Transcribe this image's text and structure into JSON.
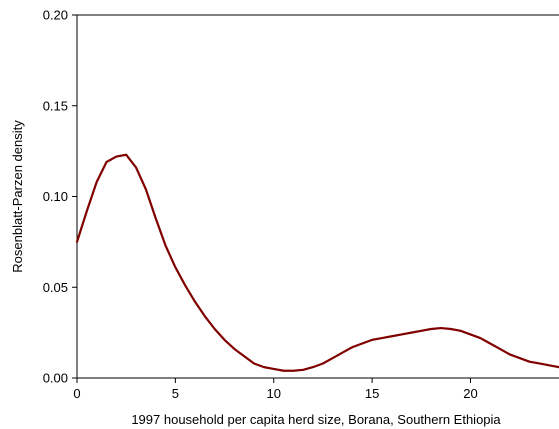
{
  "chart_data": {
    "type": "line",
    "title": "",
    "xlabel": "1997 household per capita herd size, Borana, Southern Ethiopia",
    "ylabel": "Rosenblatt-Parzen density",
    "xlim": [
      0,
      24.5
    ],
    "ylim": [
      0,
      0.2
    ],
    "x_ticks": [
      0,
      5,
      10,
      15,
      20
    ],
    "y_ticks": [
      0.0,
      0.05,
      0.1,
      0.15,
      0.2
    ],
    "x_tick_labels": [
      "0",
      "5",
      "10",
      "15",
      "20"
    ],
    "y_tick_labels": [
      "0.00",
      "0.05",
      "0.10",
      "0.15",
      "0.20"
    ],
    "grid": false,
    "legend": "none",
    "series": [
      {
        "color": "#800000",
        "x": [
          0,
          0.5,
          1,
          1.5,
          2,
          2.5,
          3,
          3.5,
          4,
          4.5,
          5,
          5.5,
          6,
          6.5,
          7,
          7.5,
          8,
          8.5,
          9,
          9.5,
          10,
          10.5,
          11,
          11.5,
          12,
          12.5,
          13,
          13.5,
          14,
          14.5,
          15,
          15.5,
          16,
          16.5,
          17,
          17.5,
          18,
          18.5,
          19,
          19.5,
          20,
          20.5,
          21,
          21.5,
          22,
          22.5,
          23,
          23.5,
          24,
          24.5
        ],
        "y": [
          0.075,
          0.092,
          0.108,
          0.119,
          0.122,
          0.123,
          0.116,
          0.104,
          0.088,
          0.073,
          0.061,
          0.051,
          0.042,
          0.034,
          0.027,
          0.021,
          0.016,
          0.012,
          0.008,
          0.006,
          0.005,
          0.004,
          0.004,
          0.0045,
          0.006,
          0.008,
          0.011,
          0.014,
          0.017,
          0.019,
          0.021,
          0.022,
          0.023,
          0.024,
          0.025,
          0.026,
          0.027,
          0.0275,
          0.027,
          0.026,
          0.024,
          0.022,
          0.019,
          0.016,
          0.013,
          0.011,
          0.009,
          0.008,
          0.007,
          0.006
        ]
      }
    ]
  }
}
